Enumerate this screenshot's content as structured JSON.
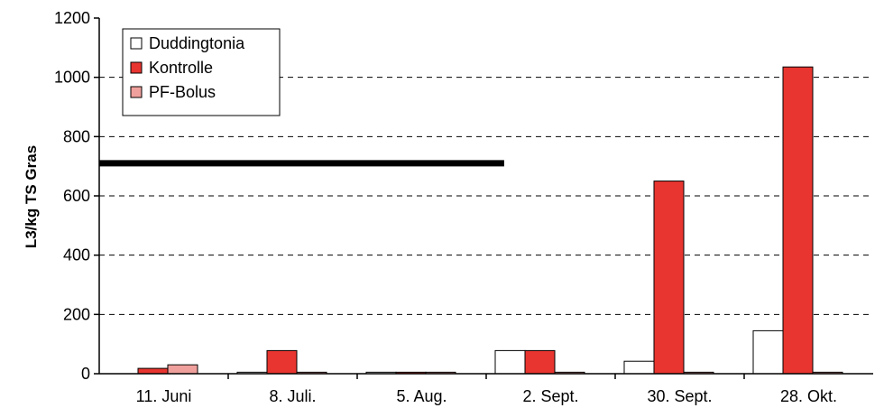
{
  "chart_data": {
    "type": "bar",
    "title": "",
    "xlabel": "",
    "ylabel": "L3/kg TS Gras",
    "ylim": [
      0,
      1200
    ],
    "yticks": [
      0,
      200,
      400,
      600,
      800,
      1000,
      1200
    ],
    "grid": "dashed horizontal",
    "legend_position": "top-left",
    "categories": [
      "11. Juni",
      "8. Juli.",
      "5. Aug.",
      "2. Sept.",
      "30. Sept.",
      "28. Okt."
    ],
    "series": [
      {
        "name": "Duddingtonia",
        "color": "#ffffff",
        "values": [
          0,
          5,
          5,
          78,
          42,
          145
        ]
      },
      {
        "name": "Kontrolle",
        "color": "#e8352f",
        "values": [
          18,
          78,
          5,
          78,
          650,
          1035
        ]
      },
      {
        "name": "PF-Bolus",
        "color": "#f0a09c",
        "values": [
          30,
          5,
          5,
          5,
          5,
          5
        ]
      }
    ],
    "reference_line": {
      "value": 710,
      "from_category": "11. Juni",
      "to_category": "2. Sept."
    }
  }
}
